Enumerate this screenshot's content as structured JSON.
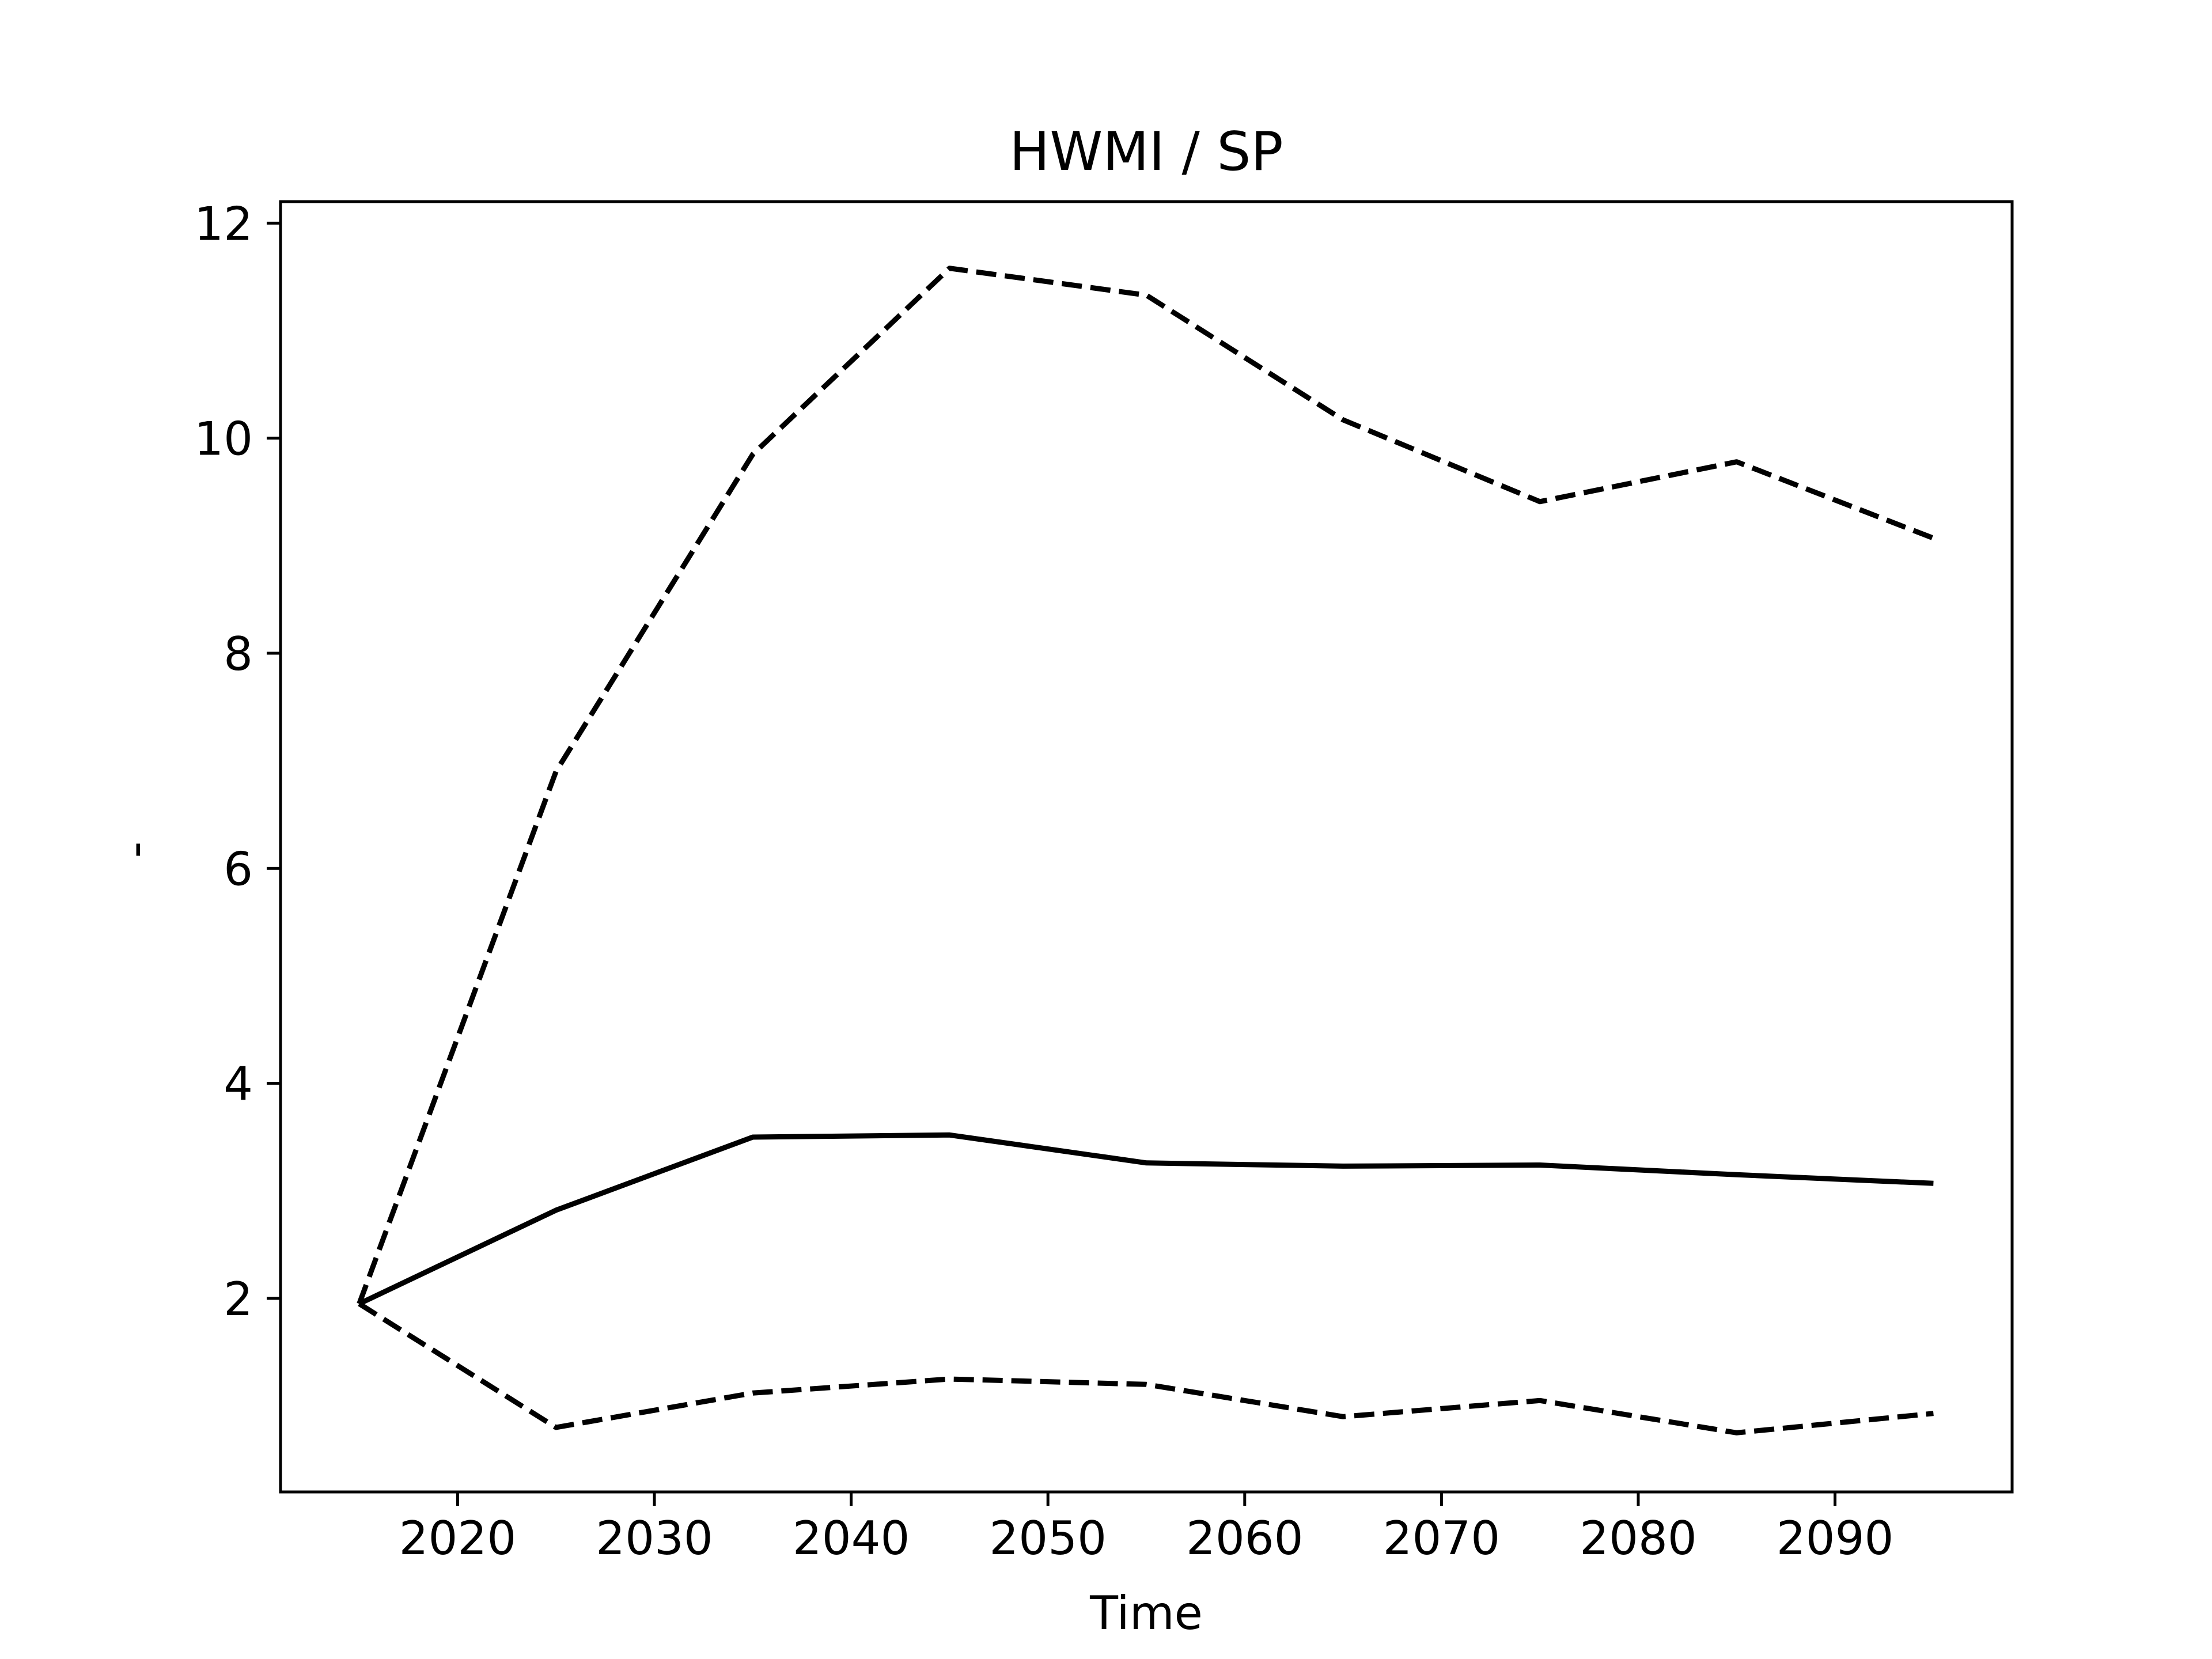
{
  "chart_data": {
    "type": "line",
    "title": "HWMI / SP",
    "xlabel": "Time",
    "ylabel": "-",
    "xlim": [
      2011,
      2099
    ],
    "ylim": [
      0.2,
      12.2
    ],
    "xticks": [
      2020,
      2030,
      2040,
      2050,
      2060,
      2070,
      2080,
      2090
    ],
    "yticks": [
      2,
      4,
      6,
      8,
      10,
      12
    ],
    "grid": false,
    "legend": "none",
    "x": [
      2015,
      2025,
      2035,
      2045,
      2055,
      2065,
      2075,
      2085,
      2095
    ],
    "series": [
      {
        "style": "solid",
        "color": "#000000",
        "values": [
          1.95,
          2.82,
          3.5,
          3.52,
          3.26,
          3.23,
          3.24,
          3.15,
          3.07
        ]
      },
      {
        "style": "dashed",
        "color": "#000000",
        "values": [
          1.95,
          6.9,
          9.85,
          11.58,
          11.33,
          10.17,
          9.41,
          9.78,
          9.07
        ]
      },
      {
        "style": "dashed",
        "color": "#000000",
        "values": [
          1.95,
          0.8,
          1.12,
          1.25,
          1.2,
          0.9,
          1.05,
          0.75,
          0.93
        ]
      }
    ]
  }
}
